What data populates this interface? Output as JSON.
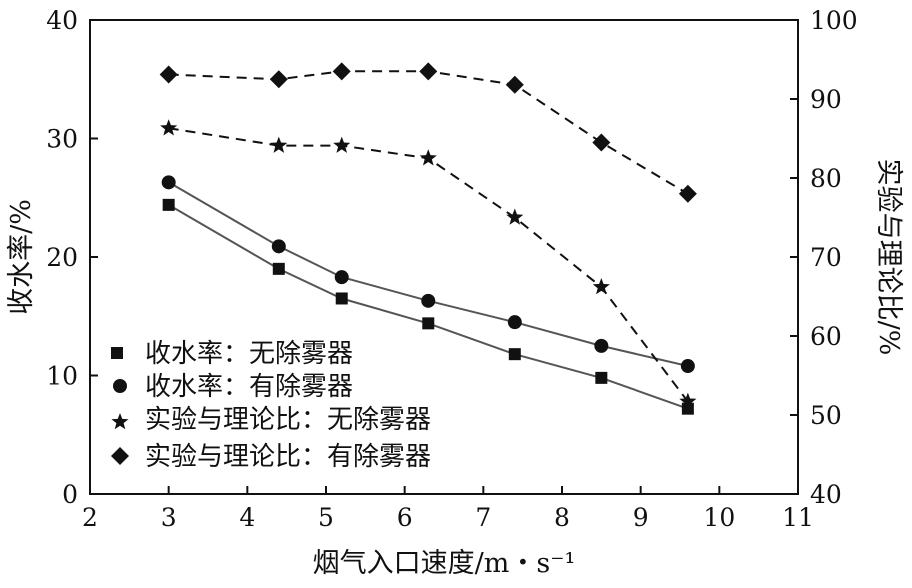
{
  "chart_data": {
    "type": "line",
    "x_axis": {
      "label": "烟气入口速度/m・s⁻¹",
      "range": [
        2,
        11
      ],
      "ticks": [
        "2",
        "3",
        "4",
        "5",
        "6",
        "7",
        "8",
        "9",
        "10",
        "11"
      ]
    },
    "y_left": {
      "label": "收水率/%",
      "range": [
        0,
        40
      ],
      "ticks": [
        "0",
        "10",
        "20",
        "30",
        "40"
      ]
    },
    "y_right": {
      "label": "实验与理论比/%",
      "range": [
        40,
        100
      ],
      "ticks": [
        "40",
        "50",
        "60",
        "70",
        "80",
        "90",
        "100"
      ]
    },
    "x": [
      3.0,
      4.4,
      5.2,
      6.3,
      7.4,
      8.5,
      9.6
    ],
    "series": [
      {
        "name": "收水率：无除雾器",
        "axis": "left",
        "marker": "square",
        "line": "solid",
        "values": [
          24.4,
          19.0,
          16.5,
          14.4,
          11.8,
          9.8,
          7.2
        ]
      },
      {
        "name": "收水率：有除雾器",
        "axis": "left",
        "marker": "circle",
        "line": "solid",
        "values": [
          26.3,
          20.9,
          18.3,
          16.3,
          14.5,
          12.5,
          10.8
        ]
      },
      {
        "name": "实验与理论比：无除雾器",
        "axis": "right",
        "marker": "star",
        "line": "dashed",
        "values": [
          86.3,
          84.1,
          84.1,
          82.5,
          75.0,
          66.2,
          51.7
        ]
      },
      {
        "name": "实验与理论比：有除雾器",
        "axis": "right",
        "marker": "diamond",
        "line": "dashed",
        "values": [
          93.1,
          92.5,
          93.5,
          93.5,
          91.8,
          84.5,
          78.0
        ]
      }
    ],
    "grid": false,
    "legend_position": "bottom-left"
  }
}
